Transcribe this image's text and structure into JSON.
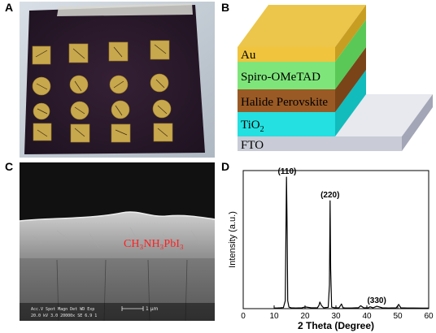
{
  "panels": {
    "a": {
      "letter": "A"
    },
    "b": {
      "letter": "B",
      "layers": [
        {
          "name": "Au",
          "color": "#f0c43c"
        },
        {
          "name": "Spiro-OMeTAD",
          "color": "#7ee57a"
        },
        {
          "name": "Halide Perovskite",
          "color": "#9a5a25"
        },
        {
          "name": "TiO",
          "sub": "2",
          "color": "#24e0e0"
        },
        {
          "name": "FTO",
          "color": "#c9ccd6"
        }
      ]
    },
    "c": {
      "letter": "C",
      "film_label": "CH₃NH₃PbI₃",
      "film_label_color": "#ff2020",
      "sem_info_line1": "Acc.V  Spot Magn    Det  WD  Exp",
      "sem_info_line2": "20.0 kV 3.0  20000x  SE  6.9  1",
      "scale_bar": "1 μm"
    },
    "d": {
      "letter": "D"
    }
  },
  "chart_data": {
    "type": "line",
    "xlabel": "2 Theta (Degree)",
    "ylabel": "Intensity (a.u.)",
    "xlim": [
      0,
      60
    ],
    "xticks": [
      0,
      10,
      20,
      30,
      40,
      50,
      60
    ],
    "y_ticks_shown": false,
    "series": [
      {
        "x": [
          10,
          11,
          12,
          13,
          13.6,
          14.0,
          14.2,
          14.4,
          14.8,
          15.5,
          17,
          19,
          20,
          22,
          24,
          24.5,
          24.8,
          25.3,
          26,
          27.5,
          27.9,
          28.1,
          28.3,
          28.6,
          29.5,
          30,
          31,
          31.8,
          32.3,
          33,
          35,
          36.5,
          37.3,
          38,
          39,
          40.5,
          41,
          42,
          43.2,
          45,
          47,
          49.5,
          50.3,
          51,
          53,
          55,
          58,
          60
        ],
        "y": [
          0.5,
          0.5,
          0.6,
          0.8,
          6,
          100,
          60,
          6,
          1.2,
          0.6,
          0.5,
          0.6,
          1.3,
          0.6,
          0.6,
          2.5,
          5,
          2.5,
          0.6,
          1,
          18,
          82,
          30,
          1.2,
          0.7,
          0.6,
          0.7,
          3.5,
          0.7,
          0.5,
          0.5,
          0.6,
          0.7,
          2.2,
          0.6,
          0.6,
          1.4,
          0.6,
          1.8,
          0.6,
          0.5,
          0.6,
          3.2,
          0.6,
          0.5,
          0.5,
          0.4,
          0.4
        ]
      }
    ],
    "peak_labels": [
      {
        "text": "(110)",
        "x": 14.2,
        "y": 100
      },
      {
        "text": "(220)",
        "x": 28.1,
        "y": 82
      },
      {
        "text": "(330)",
        "x": 43.2,
        "y": 1.8
      }
    ]
  }
}
